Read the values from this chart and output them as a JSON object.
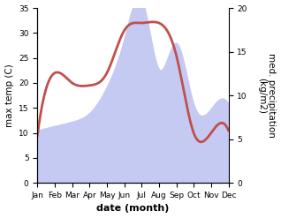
{
  "months": [
    "Jan",
    "Feb",
    "Mar",
    "Apr",
    "May",
    "Jun",
    "Jul",
    "Aug",
    "Sep",
    "Oct",
    "Nov",
    "Dec"
  ],
  "temp_values": [
    9.5,
    22.0,
    20.0,
    19.5,
    22.0,
    30.5,
    32.0,
    32.0,
    25.5,
    10.0,
    10.0,
    10.5
  ],
  "precip_values": [
    6.0,
    6.5,
    7.0,
    8.0,
    11.0,
    16.5,
    21.0,
    13.0,
    16.0,
    9.0,
    8.5,
    9.0
  ],
  "temp_color": "#c0504d",
  "precip_fill_color": "#c5caf2",
  "temp_ylim": [
    0,
    35
  ],
  "precip_ylim": [
    0,
    20
  ],
  "xlabel": "date (month)",
  "ylabel_left": "max temp (C)",
  "ylabel_right": "med. precipitation\n(kg/m2)",
  "temp_linewidth": 2.0,
  "background_color": "#ffffff",
  "tick_fontsize": 6.5,
  "label_fontsize": 7.5,
  "xlabel_fontsize": 8
}
